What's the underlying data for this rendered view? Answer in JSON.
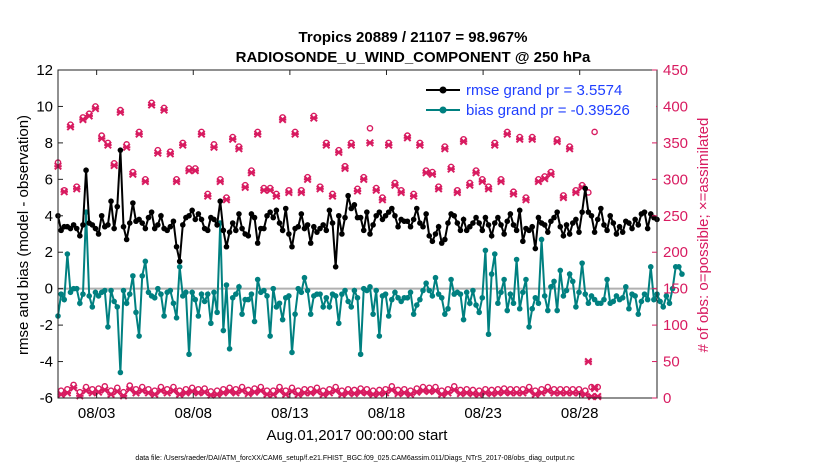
{
  "chart_data": {
    "type": "line",
    "title_line1": "Tropics 20889 / 21107 = 98.967%",
    "title_line2": "RADIOSONDE_U_WIND_COMPONENT @ 250 hPa",
    "xlabel": "Aug.01,2017 00:00:00 start",
    "ylabel_left": "rmse and bias (model - observation)",
    "ylabel_right": "# of obs: o=possible; ×=assimilated",
    "footnote": "data file: /Users/raeder/DAI/ATM_forcXX/CAM6_setup/f.e21.FHIST_BGC.f09_025.CAM6assim.011/Diags_NTrS_2017-08/obs_diag_output.nc",
    "xlim": [
      1.0,
      32.0
    ],
    "ylim_left": [
      -6,
      12
    ],
    "ylim_right": [
      0,
      450
    ],
    "x_ticks": [
      3,
      8,
      13,
      18,
      23,
      28
    ],
    "x_tick_labels": [
      "08/03",
      "08/08",
      "08/13",
      "08/18",
      "08/23",
      "08/28"
    ],
    "y_ticks_left": [
      "-6",
      "-4",
      "-2",
      "0",
      "2",
      "4",
      "6",
      "8",
      "10",
      "12"
    ],
    "y_ticks_right": [
      "0",
      "50",
      "100",
      "150",
      "200",
      "250",
      "300",
      "350",
      "400",
      "450"
    ],
    "colors": {
      "rmse": "#000000",
      "bias": "#008080",
      "obs": "#d81b60",
      "legend_text": "#1f3fff",
      "zero_line": "#b0b0b0"
    },
    "legend": {
      "rmse": "rmse grand pr = 3.5574",
      "bias": "bias grand pr = -0.39526",
      "location": "top-right"
    },
    "series": [
      {
        "name": "rmse",
        "values": [
          4.0,
          3.2,
          3.4,
          3.4,
          3.3,
          3.5,
          3.3,
          2.9,
          3.5,
          6.5,
          3.6,
          3.5,
          3.3,
          3.0,
          4.0,
          3.4,
          3.5,
          4.8,
          3.3,
          4.5,
          7.6,
          3.4,
          2.7,
          3.6,
          4.7,
          3.7,
          3.8,
          3.6,
          3.3,
          3.9,
          4.2,
          3.3,
          3.5,
          4.0,
          3.3,
          3.2,
          3.4,
          3.7,
          2.3,
          1.5,
          3.5,
          3.9,
          4.0,
          4.3,
          3.8,
          4.1,
          3.8,
          3.3,
          3.2,
          3.9,
          3.8,
          3.5,
          4.8,
          3.2,
          2.3,
          3.1,
          3.6,
          3.2,
          4.1,
          3.3,
          3.0,
          2.9,
          4.1,
          3.9,
          2.5,
          3.3,
          3.3,
          4.0,
          4.2,
          3.9,
          4.3,
          3.6,
          3.2,
          4.4,
          3.0,
          2.3,
          3.3,
          3.4,
          4.1,
          3.3,
          3.5,
          2.5,
          3.4,
          3.1,
          3.3,
          3.5,
          3.2,
          4.3,
          3.6,
          1.2,
          4.0,
          3.0,
          3.9,
          5.1,
          4.4,
          4.6,
          3.9,
          3.9,
          3.2,
          4.2,
          3.0,
          3.5,
          4.0,
          4.2,
          3.8,
          4.0,
          4.2,
          4.4,
          4.0,
          3.4,
          3.8,
          3.7,
          3.7,
          3.4,
          3.8,
          4.4,
          3.6,
          3.4,
          4.1,
          2.9,
          2.6,
          3.0,
          3.4,
          2.5,
          2.7,
          3.6,
          4.1,
          4.0,
          3.6,
          3.2,
          3.8,
          3.2,
          3.4,
          3.6,
          3.9,
          3.6,
          3.2,
          3.9,
          3.5,
          2.9,
          3.6,
          3.9,
          3.5,
          3.0,
          3.7,
          4.1,
          3.5,
          3.2,
          4.3,
          2.6,
          3.3,
          3.2,
          3.4,
          2.2,
          3.9,
          3.6,
          3.5,
          3.1,
          3.7,
          3.9,
          4.2,
          3.4,
          2.9,
          3.5,
          3.0,
          3.6,
          3.8,
          3.1,
          4.2,
          5.5,
          4.2,
          4.0,
          3.1,
          3.8,
          4.4,
          3.5,
          3.2,
          4.0,
          3.6,
          3.0,
          3.4,
          3.1,
          3.7,
          3.6,
          3.3,
          3.8,
          3.5,
          4.1,
          4.2,
          3.3,
          4.1,
          3.9,
          3.8
        ]
      },
      {
        "name": "bias",
        "values": [
          -1.5,
          -0.3,
          -0.6,
          1.9,
          -0.2,
          0.0,
          0.0,
          -0.8,
          -0.3,
          4.2,
          -0.4,
          -1.0,
          -0.2,
          -0.4,
          -0.2,
          -0.1,
          -2.1,
          -0.1,
          -0.7,
          -1.0,
          -4.6,
          -0.1,
          -0.8,
          -0.3,
          0.7,
          -1.3,
          -2.6,
          0.7,
          1.5,
          -0.2,
          -0.4,
          -0.5,
          0.0,
          -0.3,
          -1.5,
          -0.2,
          -0.1,
          -0.8,
          -1.6,
          1.2,
          -0.4,
          -0.2,
          -3.6,
          -0.2,
          -0.6,
          -1.5,
          -0.3,
          -0.7,
          -0.3,
          -1.9,
          -0.2,
          -1.3,
          3.6,
          -2.3,
          0.2,
          -3.3,
          -0.5,
          -0.3,
          0.1,
          -1.4,
          -0.6,
          -0.6,
          -0.3,
          -1.8,
          0.5,
          -0.2,
          -0.1,
          -0.4,
          -2.6,
          0.0,
          -1.0,
          -0.8,
          -1.7,
          -0.5,
          -0.4,
          -3.5,
          -1.4,
          0.0,
          -0.2,
          0.6,
          -0.1,
          -1.4,
          -0.4,
          -0.3,
          -0.3,
          -1.0,
          -0.5,
          -1.0,
          -0.3,
          -0.4,
          -1.9,
          -0.3,
          -0.1,
          -0.7,
          -1.0,
          -0.1,
          -0.5,
          -3.6,
          0.0,
          -0.1,
          0.1,
          -1.4,
          -0.1,
          -2.6,
          -0.4,
          -0.3,
          -1.5,
          -0.6,
          -0.2,
          -0.5,
          -0.7,
          -0.5,
          -0.5,
          -0.2,
          -1.4,
          -0.9,
          -0.6,
          -0.1,
          0.3,
          -0.1,
          -0.4,
          0.6,
          -0.3,
          -0.5,
          -1.4,
          -1.1,
          0.5,
          -0.3,
          -0.2,
          -0.3,
          -1.7,
          -0.2,
          -0.8,
          -0.1,
          -0.9,
          -1.3,
          -0.5,
          2.1,
          -2.5,
          0.8,
          1.9,
          -0.8,
          -0.2,
          0.5,
          -1.2,
          -0.3,
          -0.8,
          1.6,
          -1.1,
          -0.2,
          0.5,
          -2.1,
          -1.1,
          -0.5,
          -0.8,
          2.7,
          -0.4,
          -1.2,
          0.1,
          0.4,
          -1.2,
          1.0,
          -0.4,
          -0.1,
          0.8,
          0.4,
          -1.0,
          -0.2,
          1.4,
          -0.3,
          -0.8,
          -0.4,
          -0.6,
          -0.8,
          -0.8,
          -0.6,
          0.5,
          -0.8,
          -0.7,
          -0.4,
          -0.6,
          -0.5,
          0.1,
          -1.1,
          -0.3,
          -0.4,
          -1.4,
          -0.7,
          -0.3,
          -0.6,
          1.2,
          -0.6,
          -0.3,
          -0.7,
          -1.0,
          -0.4,
          -0.8,
          0.0,
          1.2,
          1.2,
          0.8
        ]
      },
      {
        "name": "obs_possible",
        "values": [
          323,
          10,
          285,
          12,
          375,
          18,
          290,
          8,
          385,
          15,
          390,
          12,
          400,
          13,
          360,
          16,
          350,
          10,
          322,
          14,
          395,
          8,
          348,
          17,
          310,
          12,
          365,
          15,
          300,
          12,
          405,
          10,
          340,
          15,
          398,
          12,
          338,
          15,
          300,
          10,
          350,
          12,
          315,
          14,
          315,
          12,
          365,
          13,
          280,
          9,
          348,
          10,
          300,
          12,
          275,
          14,
          358,
          12,
          345,
          15,
          292,
          11,
          312,
          13,
          365,
          15,
          288,
          10,
          288,
          10,
          280,
          15,
          385,
          10,
          285,
          14,
          365,
          10,
          285,
          12,
          303,
          12,
          387,
          14,
          290,
          10,
          350,
          12,
          280,
          15,
          340,
          10,
          318,
          12,
          350,
          11,
          287,
          13,
          303,
          12,
          370,
          10,
          288,
          11,
          275,
          12,
          350,
          16,
          295,
          11,
          285,
          12,
          360,
          10,
          280,
          13,
          350,
          15,
          312,
          14,
          310,
          15,
          290,
          10,
          345,
          12,
          317,
          16,
          285,
          11,
          355,
          12,
          295,
          11,
          312,
          10,
          300,
          12,
          290,
          11,
          350,
          12,
          300,
          13,
          365,
          12,
          283,
          12,
          358,
          12,
          275,
          15,
          358,
          10,
          300,
          12,
          304,
          15,
          310,
          12,
          355,
          12,
          278,
          12,
          345,
          12,
          285,
          12,
          292,
          10,
          282,
          15,
          365,
          15
        ]
      },
      {
        "name": "obs_assimilated",
        "values": [
          318,
          5,
          283,
          7,
          372,
          14,
          287,
          3,
          382,
          10,
          387,
          7,
          397,
          8,
          356,
          11,
          347,
          5,
          319,
          9,
          392,
          3,
          344,
          12,
          307,
          7,
          362,
          10,
          297,
          7,
          402,
          5,
          336,
          10,
          395,
          7,
          335,
          10,
          297,
          5,
          347,
          7,
          312,
          9,
          312,
          7,
          362,
          8,
          277,
          4,
          344,
          5,
          297,
          7,
          272,
          9,
          355,
          7,
          342,
          10,
          289,
          6,
          309,
          8,
          362,
          10,
          285,
          5,
          285,
          5,
          277,
          10,
          382,
          5,
          282,
          9,
          362,
          5,
          282,
          7,
          300,
          7,
          384,
          9,
          287,
          5,
          347,
          7,
          277,
          10,
          337,
          5,
          315,
          7,
          347,
          6,
          284,
          8,
          300,
          7,
          350,
          5,
          285,
          6,
          272,
          7,
          347,
          11,
          292,
          6,
          282,
          7,
          357,
          5,
          277,
          8,
          347,
          10,
          309,
          9,
          307,
          10,
          287,
          5,
          342,
          7,
          314,
          11,
          282,
          6,
          352,
          7,
          292,
          6,
          309,
          5,
          297,
          7,
          287,
          6,
          347,
          7,
          297,
          8,
          362,
          7,
          280,
          7,
          355,
          7,
          272,
          10,
          355,
          5,
          297,
          7,
          301,
          10,
          307,
          7,
          352,
          7,
          275,
          7,
          342,
          7,
          282,
          7,
          289,
          5,
          50,
          2,
          13,
          2
        ]
      }
    ]
  }
}
